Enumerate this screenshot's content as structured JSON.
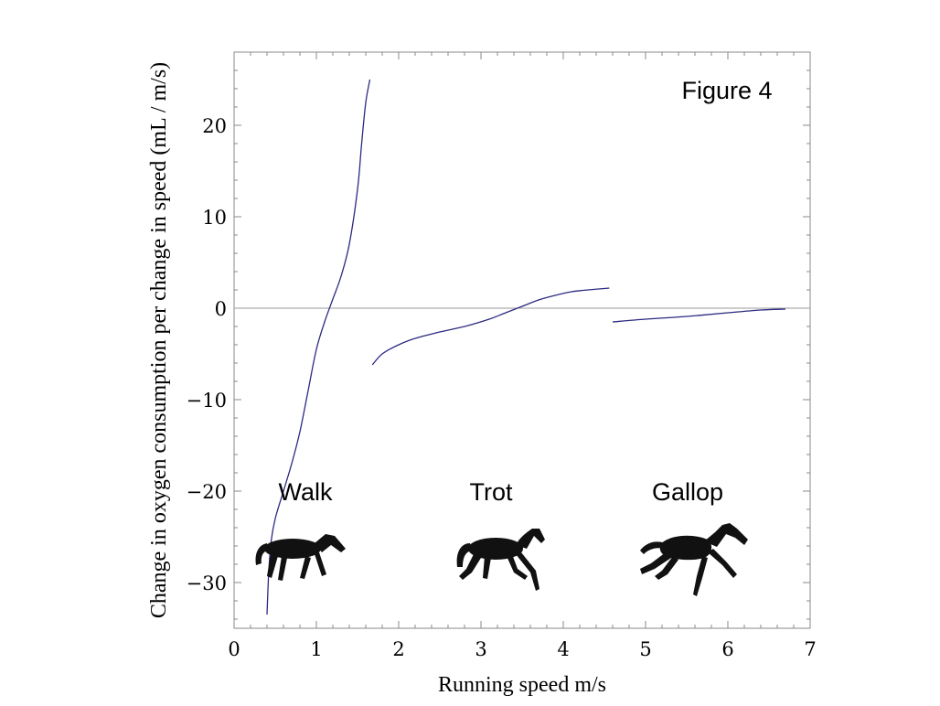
{
  "chart_data": {
    "type": "line",
    "title": "Figure 4",
    "xlabel": "Running speed m/s",
    "ylabel": "Change in oxygen consumption per change in speed (mL / m/s)",
    "xlim": [
      0,
      7
    ],
    "ylim": [
      -35,
      28
    ],
    "x_ticks": [
      0,
      1,
      2,
      3,
      4,
      5,
      6,
      7
    ],
    "y_ticks": [
      -30,
      -20,
      -10,
      0,
      10,
      20
    ],
    "x_tick_labels": [
      "0",
      "1",
      "2",
      "3",
      "4",
      "5",
      "6",
      "7"
    ],
    "y_tick_labels": [
      "−30",
      "−20",
      "−10",
      "0",
      "10",
      "20"
    ],
    "grid": false,
    "reference_line": 0,
    "series": [
      {
        "x": [
          0.4,
          0.42,
          0.45,
          0.5,
          0.6,
          0.7,
          0.8,
          0.9,
          1.0,
          1.1,
          1.2,
          1.3,
          1.4,
          1.5,
          1.55,
          1.6,
          1.65
        ],
        "y": [
          -33.5,
          -29,
          -25.5,
          -23,
          -20,
          -17,
          -13.5,
          -9,
          -4.5,
          -1.5,
          1,
          3.5,
          7,
          13,
          18,
          22.5,
          25
        ]
      },
      {
        "x": [
          1.68,
          1.8,
          2.0,
          2.2,
          2.5,
          2.8,
          3.1,
          3.3,
          3.5,
          3.7,
          3.9,
          4.1,
          4.3,
          4.56
        ],
        "y": [
          -6.2,
          -5,
          -4,
          -3.3,
          -2.6,
          -2,
          -1.2,
          -0.5,
          0.2,
          0.9,
          1.4,
          1.8,
          2.0,
          2.2
        ]
      },
      {
        "x": [
          4.6,
          5.0,
          5.5,
          6.0,
          6.4,
          6.7
        ],
        "y": [
          -1.5,
          -1.2,
          -0.9,
          -0.5,
          -0.2,
          -0.1
        ]
      }
    ],
    "annotations": [
      {
        "text": "Walk",
        "x": 0.85,
        "y": -20
      },
      {
        "text": "Trot",
        "x": 3.1,
        "y": -20
      },
      {
        "text": "Gallop",
        "x": 5.2,
        "y": -20
      }
    ],
    "icons": [
      "walking-horse-icon",
      "trotting-horse-icon",
      "galloping-horse-icon"
    ]
  }
}
